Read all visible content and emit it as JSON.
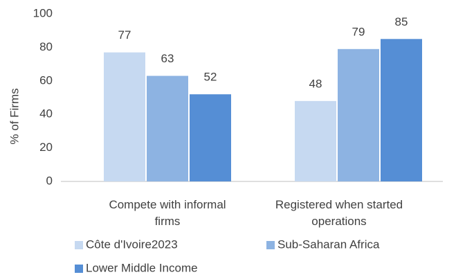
{
  "chart_data": {
    "type": "bar",
    "categories": [
      "Compete with informal firms",
      "Registered when started operations"
    ],
    "series": [
      {
        "name": "Côte d'Ivoire2023",
        "color": "#c6d9f1",
        "values": [
          77,
          48
        ]
      },
      {
        "name": "Sub-Saharan Africa",
        "color": "#8db3e2",
        "values": [
          63,
          79
        ]
      },
      {
        "name": "Lower Middle Income",
        "color": "#558ed5",
        "values": [
          52,
          85
        ]
      }
    ],
    "y_label": "% of Firms",
    "ylim": [
      0,
      100
    ],
    "yticks": [
      0,
      20,
      40,
      60,
      80,
      100
    ],
    "grid": false,
    "legend": "bottom"
  }
}
